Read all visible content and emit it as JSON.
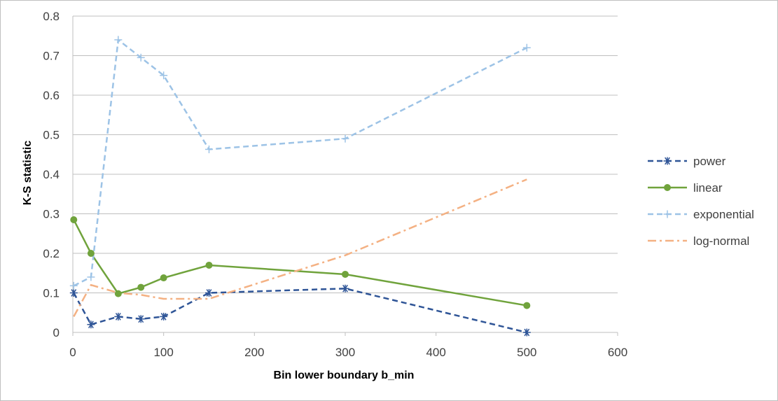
{
  "chart_data": {
    "type": "line",
    "title": "",
    "xlabel": "Bin lower boundary b_min",
    "ylabel": "K-S statistic",
    "xlim": [
      0,
      600
    ],
    "ylim": [
      0,
      0.8
    ],
    "x_ticks": [
      "0",
      "100",
      "200",
      "300",
      "400",
      "500",
      "600"
    ],
    "y_ticks": [
      "0",
      "0.1",
      "0.2",
      "0.3",
      "0.4",
      "0.5",
      "0.6",
      "0.7",
      "0.8"
    ],
    "grid": "horizontal",
    "legend_position": "right",
    "x": [
      1,
      20,
      50,
      75,
      100,
      150,
      300,
      500
    ],
    "series": [
      {
        "name": "power",
        "color": "#2f5597",
        "dash": "dash",
        "marker": "asterisk",
        "values": [
          0.1,
          0.02,
          0.04,
          0.034,
          0.04,
          0.1,
          0.111,
          0.0
        ]
      },
      {
        "name": "linear",
        "color": "#70a33c",
        "dash": "solid",
        "marker": "circle",
        "values": [
          0.285,
          0.2,
          0.098,
          0.114,
          0.138,
          0.17,
          0.147,
          0.068
        ]
      },
      {
        "name": "exponential",
        "color": "#9dc3e6",
        "dash": "dash",
        "marker": "plus",
        "values": [
          0.118,
          0.14,
          0.74,
          0.695,
          0.65,
          0.463,
          0.49,
          0.72
        ]
      },
      {
        "name": "log-normal",
        "color": "#f4b183",
        "dash": "dashdot",
        "marker": "none",
        "values": [
          0.04,
          0.12,
          0.1,
          0.095,
          0.085,
          0.085,
          0.195,
          0.387
        ]
      }
    ]
  }
}
